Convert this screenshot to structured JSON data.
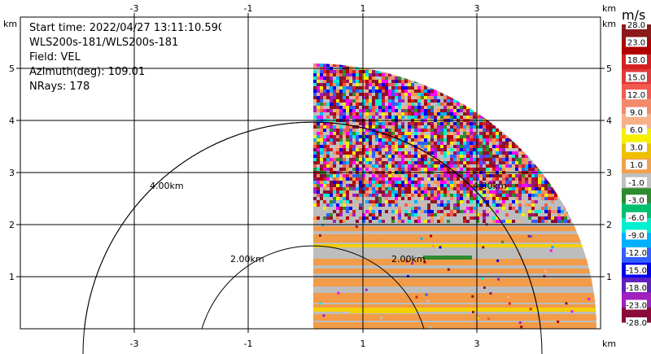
{
  "info": {
    "start_time": "Start time: 2022/04/27 13:11:10.590",
    "instrument": "WLS200s-181/WLS200s-181",
    "field": "Field: VEL",
    "azimuth": "Azimuth(deg): 109.01",
    "nrays": "NRays: 178"
  },
  "axes": {
    "x_unit": "km",
    "y_unit": "km",
    "x_ticks": [
      "-3",
      "-1",
      "1",
      "3"
    ],
    "y_ticks": [
      "1",
      "2",
      "3",
      "4",
      "5"
    ]
  },
  "range_rings": [
    "2.00km",
    "4.00km"
  ],
  "colorbar": {
    "title": "m/s",
    "labels": [
      "28.0",
      "23.0",
      "18.0",
      "15.0",
      "12.0",
      "9.0",
      "6.0",
      "3.0",
      "1.0",
      "-1.0",
      "-3.0",
      "-6.0",
      "-9.0",
      "-12.0",
      "-15.0",
      "-18.0",
      "-23.0",
      "-28.0"
    ],
    "colors": [
      "#8b1a1a",
      "#b00000",
      "#d42020",
      "#e23a3a",
      "#f25a50",
      "#f28a6a",
      "#f7b08a",
      "#f5f000",
      "#f0c000",
      "#f2a050",
      "#c0c0c0",
      "#2e8b2e",
      "#00c070",
      "#00f0d0",
      "#00b0ff",
      "#3060ff",
      "#0000f0",
      "#6020c0",
      "#a020c0",
      "#8b0a3a"
    ]
  },
  "colors": {
    "gray": "#bdbdbd",
    "orange": "#f29b48",
    "yellow": "#f5d000",
    "green": "#2e8b2e"
  }
}
